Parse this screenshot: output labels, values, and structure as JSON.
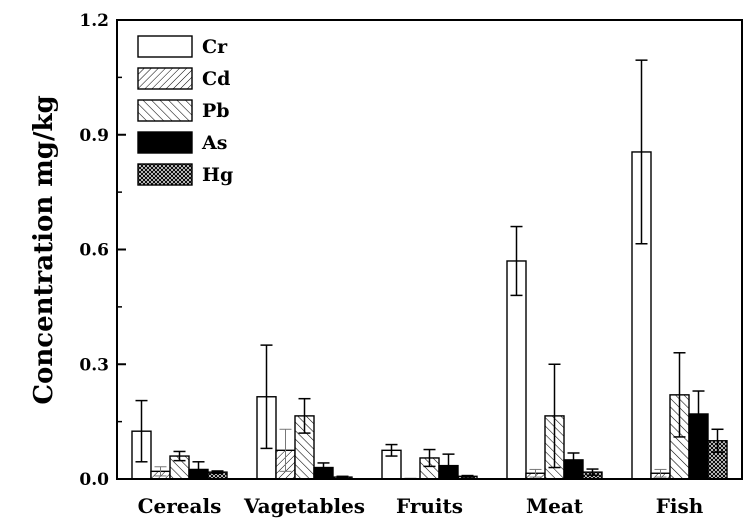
{
  "chart_data": {
    "type": "bar",
    "title": "",
    "xlabel": "",
    "ylabel": "Concentration  mg/kg",
    "ylim": [
      0,
      1.2
    ],
    "yticks": [
      "0.0",
      "0.3",
      "0.6",
      "0.9",
      "1.2"
    ],
    "categories": [
      "Cereals",
      "Vagetables",
      "Fruits",
      "Meat",
      "Fish"
    ],
    "legend_position": "top-left",
    "series": [
      {
        "name": "Cr",
        "pattern": "open",
        "values": [
          0.125,
          0.215,
          0.075,
          0.57,
          0.855
        ],
        "errors": [
          0.08,
          0.135,
          0.015,
          0.09,
          0.24
        ]
      },
      {
        "name": "Cd",
        "pattern": "hatch-diagonal-fine",
        "values": [
          0.02,
          0.075,
          0.0,
          0.015,
          0.015
        ],
        "errors": [
          0.012,
          0.055,
          0.002,
          0.01,
          0.01
        ]
      },
      {
        "name": "Pb",
        "pattern": "hatch-diagonal-back",
        "values": [
          0.06,
          0.165,
          0.055,
          0.165,
          0.22
        ],
        "errors": [
          0.012,
          0.045,
          0.022,
          0.135,
          0.11
        ]
      },
      {
        "name": "As",
        "pattern": "solid-black",
        "values": [
          0.025,
          0.03,
          0.035,
          0.05,
          0.17
        ],
        "errors": [
          0.02,
          0.012,
          0.03,
          0.018,
          0.06
        ]
      },
      {
        "name": "Hg",
        "pattern": "crosshatch",
        "values": [
          0.018,
          0.005,
          0.007,
          0.018,
          0.1
        ],
        "errors": [
          0.003,
          0.002,
          0.002,
          0.008,
          0.03
        ]
      }
    ]
  }
}
